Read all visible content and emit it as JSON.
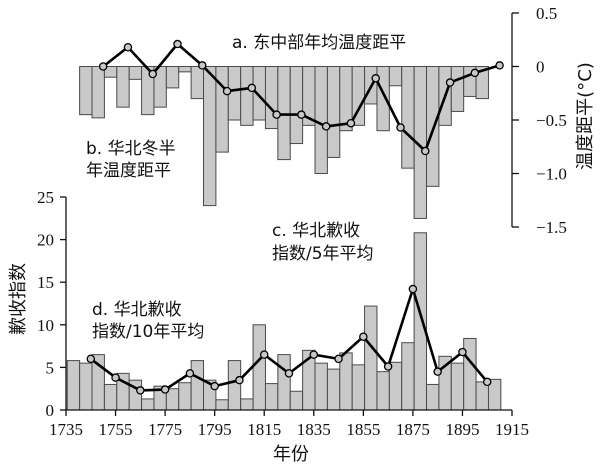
{
  "chart_data": [
    {
      "panel": "top",
      "type": "bar+line",
      "series": [
        {
          "name": "b. 华北冬半年温度距平",
          "type": "bar",
          "x": [
            1743,
            1748,
            1753,
            1758,
            1763,
            1768,
            1773,
            1778,
            1783,
            1788,
            1793,
            1798,
            1803,
            1808,
            1813,
            1818,
            1823,
            1828,
            1833,
            1838,
            1843,
            1848,
            1853,
            1858,
            1863,
            1868,
            1873,
            1878,
            1883,
            1888,
            1893,
            1898,
            1903
          ],
          "values": [
            -0.45,
            -0.48,
            -0.1,
            -0.38,
            -0.12,
            -0.45,
            -0.38,
            -0.2,
            -0.05,
            -0.3,
            -1.3,
            -0.8,
            -0.5,
            -0.55,
            -0.5,
            -0.58,
            -0.87,
            -0.72,
            -0.55,
            -1.0,
            -0.85,
            -0.6,
            -0.55,
            -0.35,
            -0.6,
            -0.18,
            -0.95,
            -1.42,
            -1.12,
            -0.55,
            -0.42,
            -0.28,
            -0.3
          ]
        },
        {
          "name": "a. 东中部年均温度距平",
          "type": "line",
          "x": [
            1750,
            1760,
            1770,
            1780,
            1790,
            1800,
            1810,
            1820,
            1830,
            1840,
            1850,
            1860,
            1870,
            1880,
            1890,
            1900,
            1910
          ],
          "values": [
            0.0,
            0.18,
            -0.07,
            0.21,
            0.01,
            -0.23,
            -0.2,
            -0.45,
            -0.45,
            -0.56,
            -0.53,
            -0.11,
            -0.57,
            -0.79,
            -0.15,
            -0.06,
            0.01
          ]
        }
      ],
      "yaxis": {
        "side": "right",
        "label": "温度距平(°C)",
        "ticks": [
          0.5,
          0,
          -0.5,
          -1.0,
          -1.5
        ],
        "tick_labels": [
          "0.5",
          "0",
          "−0.5",
          "−1.0",
          "−1.5"
        ],
        "ylim": [
          -1.5,
          0.5
        ]
      }
    },
    {
      "panel": "bottom",
      "type": "bar+line",
      "series": [
        {
          "name": "c. 华北歉收指数/5年平均",
          "type": "bar",
          "x": [
            1738,
            1743,
            1748,
            1753,
            1758,
            1763,
            1768,
            1773,
            1778,
            1783,
            1788,
            1793,
            1798,
            1803,
            1808,
            1813,
            1818,
            1823,
            1828,
            1833,
            1838,
            1843,
            1848,
            1853,
            1858,
            1863,
            1868,
            1873,
            1878,
            1883,
            1888,
            1893,
            1898,
            1903,
            1908
          ],
          "values": [
            5.8,
            5.5,
            6.5,
            3.0,
            4.3,
            3.5,
            1.3,
            2.8,
            2.5,
            3.2,
            5.8,
            3.5,
            1.2,
            5.8,
            1.3,
            10.0,
            3.1,
            6.5,
            2.2,
            7.0,
            5.5,
            4.8,
            6.7,
            5.3,
            12.2,
            4.5,
            5.6,
            7.9,
            20.8,
            3.0,
            6.3,
            5.5,
            8.4,
            3.3,
            3.6
          ]
        },
        {
          "name": "d. 华北歉收指数/10年平均",
          "type": "line",
          "x": [
            1745,
            1755,
            1765,
            1775,
            1785,
            1795,
            1805,
            1815,
            1825,
            1835,
            1845,
            1855,
            1865,
            1875,
            1885,
            1895,
            1905
          ],
          "values": [
            6.0,
            3.8,
            2.3,
            2.4,
            4.3,
            2.8,
            3.5,
            6.5,
            4.3,
            6.5,
            6.0,
            8.6,
            5.1,
            14.2,
            4.5,
            6.8,
            3.3
          ]
        }
      ],
      "yaxis": {
        "side": "left",
        "label": "歉收指数",
        "ticks": [
          0,
          5,
          10,
          15,
          20,
          25
        ],
        "tick_labels": [
          "0",
          "5",
          "10",
          "15",
          "20",
          "25"
        ],
        "ylim": [
          0,
          25
        ]
      }
    }
  ],
  "xaxis": {
    "label": "年份",
    "ticks": [
      1735,
      1755,
      1775,
      1795,
      1815,
      1835,
      1855,
      1875,
      1895,
      1915
    ],
    "tick_labels": [
      "1735",
      "1755",
      "1775",
      "1795",
      "1815",
      "1835",
      "1855",
      "1875",
      "1895",
      "1915"
    ],
    "xlim": [
      1735,
      1915
    ]
  },
  "annotations": {
    "a": "a. 东中部年均温度距平",
    "b_line1": "b. 华北冬半",
    "b_line2": "年温度距平",
    "c_line1": "c. 华北歉收",
    "c_line2": "指数/5年平均",
    "d_line1": "d. 华北歉收",
    "d_line2": "指数/10年平均"
  },
  "colors": {
    "bar_fill": "#c9c9c9",
    "bar_stroke": "#4a4a4a",
    "line": "#000000",
    "marker_fill": "#c8c8c8"
  }
}
